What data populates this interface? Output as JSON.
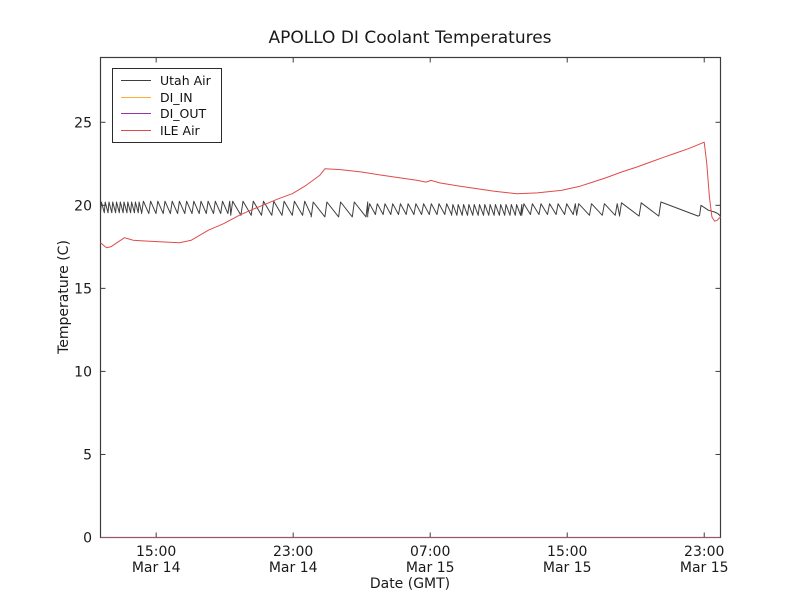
{
  "title": "APOLLO DI Coolant Temperatures",
  "chart_data": {
    "type": "line",
    "title": "APOLLO DI Coolant Temperatures",
    "xlabel": "Date (GMT)",
    "ylabel": "Temperature (C)",
    "xlim": [
      0,
      36.2
    ],
    "ylim": [
      0,
      28.9
    ],
    "x_unit_hours_since": "Mar 14 ~11:45 GMT",
    "grid": false,
    "frame_color": "#3c3c3c",
    "tick_label_color": "#1a1a1a",
    "yticks": [
      0,
      5,
      10,
      15,
      20,
      25
    ],
    "xticks": [
      {
        "t": 3.25,
        "time": "15:00",
        "date": "Mar 14"
      },
      {
        "t": 11.25,
        "time": "23:00",
        "date": "Mar 14"
      },
      {
        "t": 19.25,
        "time": "07:00",
        "date": "Mar 15"
      },
      {
        "t": 27.25,
        "time": "15:00",
        "date": "Mar 15"
      },
      {
        "t": 35.25,
        "time": "23:00",
        "date": "Mar 15"
      }
    ],
    "legend": {
      "position": "upper-left"
    },
    "series": [
      {
        "name": "Utah Air",
        "color": "#3f3f3f",
        "width": 1,
        "pattern": "sawtooth-oscillation ~19.4-20.2 C",
        "segments": [
          {
            "t0": 0.0,
            "t1": 2.4,
            "p": 0.22,
            "lo": 19.55,
            "hi": 20.2
          },
          {
            "t0": 2.4,
            "t1": 7.6,
            "p": 0.42,
            "lo": 19.5,
            "hi": 20.25
          },
          {
            "t0": 7.6,
            "t1": 12.3,
            "p": 0.6,
            "lo": 19.4,
            "hi": 20.25
          },
          {
            "t0": 12.3,
            "t1": 15.6,
            "p": 0.8,
            "lo": 19.3,
            "hi": 20.2
          },
          {
            "t0": 15.6,
            "t1": 20.5,
            "p": 0.45,
            "lo": 19.45,
            "hi": 20.1
          },
          {
            "t0": 20.5,
            "t1": 24.6,
            "p": 0.31,
            "lo": 19.4,
            "hi": 20.05
          },
          {
            "t0": 24.6,
            "t1": 27.8,
            "p": 0.5,
            "lo": 19.45,
            "hi": 20.1
          },
          {
            "t0": 27.8,
            "t1": 30.3,
            "p": 0.75,
            "lo": 19.4,
            "hi": 20.1
          },
          {
            "t0": 30.3,
            "t1": 32.6,
            "p": 1.15,
            "lo": 19.35,
            "hi": 20.15
          },
          {
            "t0": 32.6,
            "t1": 34.9,
            "p": 2.3,
            "lo": 19.35,
            "hi": 20.2
          }
        ],
        "tail": [
          [
            34.98,
            19.4
          ],
          [
            35.06,
            20.0
          ],
          [
            35.5,
            19.7
          ],
          [
            35.85,
            19.6
          ],
          [
            36.05,
            19.5
          ],
          [
            36.2,
            19.35
          ]
        ]
      },
      {
        "name": "DI_IN",
        "color": "#ffad33",
        "width": 1,
        "opacity": 0.5,
        "points": [
          [
            0,
            0
          ],
          [
            36.2,
            0
          ]
        ]
      },
      {
        "name": "DI_OUT",
        "color": "#9933aa",
        "width": 1,
        "opacity": 0.5,
        "points": [
          [
            0,
            0
          ],
          [
            36.2,
            0
          ]
        ]
      },
      {
        "name": "ILE Air",
        "color": "#e04b4b",
        "width": 1,
        "points": [
          [
            0,
            17.75
          ],
          [
            0.35,
            17.45
          ],
          [
            0.6,
            17.5
          ],
          [
            1.4,
            18.05
          ],
          [
            1.9,
            17.9
          ],
          [
            2.6,
            17.85
          ],
          [
            3.6,
            17.8
          ],
          [
            4.6,
            17.75
          ],
          [
            5.3,
            17.9
          ],
          [
            6.3,
            18.5
          ],
          [
            7.2,
            18.9
          ],
          [
            8.1,
            19.4
          ],
          [
            9.0,
            19.8
          ],
          [
            9.7,
            20.1
          ],
          [
            10.4,
            20.4
          ],
          [
            11.2,
            20.7
          ],
          [
            12.0,
            21.2
          ],
          [
            12.8,
            21.8
          ],
          [
            13.1,
            22.2
          ],
          [
            14.0,
            22.15
          ],
          [
            15.3,
            22.0
          ],
          [
            16.5,
            21.8
          ],
          [
            17.5,
            21.65
          ],
          [
            18.5,
            21.5
          ],
          [
            19.0,
            21.4
          ],
          [
            19.3,
            21.5
          ],
          [
            19.8,
            21.35
          ],
          [
            21.0,
            21.15
          ],
          [
            22.0,
            21.0
          ],
          [
            23.0,
            20.85
          ],
          [
            24.3,
            20.7
          ],
          [
            25.5,
            20.75
          ],
          [
            26.9,
            20.9
          ],
          [
            28.0,
            21.15
          ],
          [
            28.6,
            21.35
          ],
          [
            29.5,
            21.65
          ],
          [
            30.4,
            22.0
          ],
          [
            31.3,
            22.3
          ],
          [
            32.1,
            22.6
          ],
          [
            32.9,
            22.9
          ],
          [
            33.6,
            23.15
          ],
          [
            34.3,
            23.4
          ],
          [
            34.9,
            23.65
          ],
          [
            35.25,
            23.8
          ],
          [
            35.4,
            22.5
          ],
          [
            35.55,
            20.5
          ],
          [
            35.7,
            19.3
          ],
          [
            35.85,
            19.05
          ],
          [
            36.0,
            19.1
          ],
          [
            36.2,
            19.3
          ]
        ]
      }
    ]
  }
}
